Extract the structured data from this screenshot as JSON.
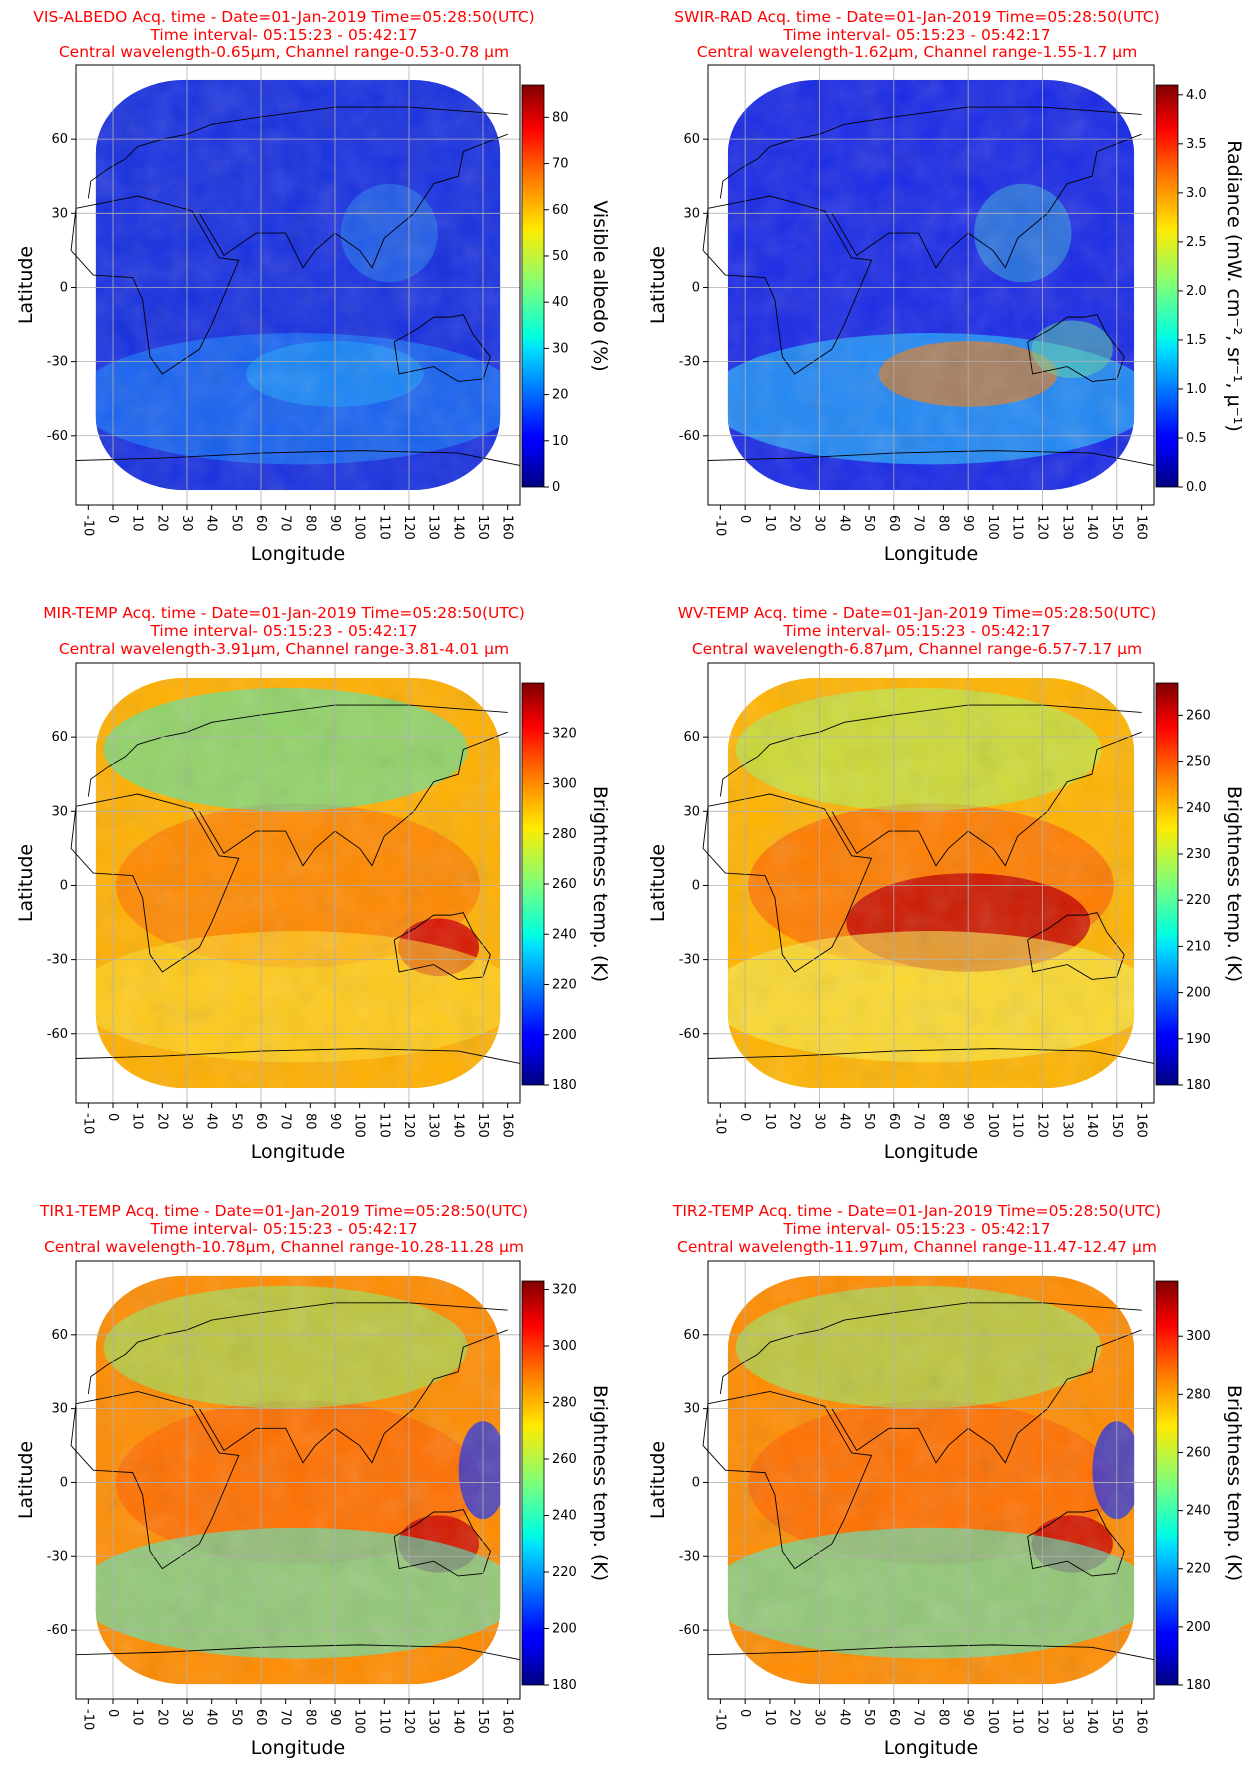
{
  "chart_data": [
    {
      "type": "heatmap",
      "title": [
        "VIS-ALBEDO Acq. time - Date=01-Jan-2019 Time=05:28:50(UTC)",
        "Time interval- 05:15:23 - 05:42:17",
        "Central wavelength-0.65µm, Channel range-0.53-0.78 µm"
      ],
      "xlabel": "Longitude",
      "ylabel": "Latitude",
      "xticks": [
        "-10",
        "0",
        "10",
        "20",
        "30",
        "40",
        "50",
        "60",
        "70",
        "80",
        "90",
        "100",
        "110",
        "120",
        "130",
        "140",
        "150",
        "160"
      ],
      "yticks": [
        "60",
        "30",
        "0",
        "-30",
        "-60"
      ],
      "colorbar": {
        "label": "Visible albedo (%)",
        "min": 0,
        "max": 87,
        "ticks": [
          "0",
          "10",
          "20",
          "30",
          "40",
          "50",
          "60",
          "70",
          "80"
        ],
        "tickvals": [
          0,
          10,
          20,
          30,
          40,
          50,
          60,
          70,
          80
        ]
      },
      "style": "vis"
    },
    {
      "type": "heatmap",
      "title": [
        "SWIR-RAD Acq. time - Date=01-Jan-2019 Time=05:28:50(UTC)",
        "Time interval- 05:15:23 - 05:42:17",
        "Central wavelength-1.62µm, Channel range-1.55-1.7 µm"
      ],
      "xlabel": "Longitude",
      "ylabel": "Latitude",
      "xticks": [
        "-10",
        "0",
        "10",
        "20",
        "30",
        "40",
        "50",
        "60",
        "70",
        "80",
        "90",
        "100",
        "110",
        "120",
        "130",
        "140",
        "150",
        "160"
      ],
      "yticks": [
        "60",
        "30",
        "0",
        "-30",
        "-60"
      ],
      "colorbar": {
        "label": "Radiance (mW. cm⁻², sr⁻¹, µ⁻¹)",
        "min": 0,
        "max": 4.1,
        "ticks": [
          "0.0",
          "0.5",
          "1.0",
          "1.5",
          "2.0",
          "2.5",
          "3.0",
          "3.5",
          "4.0"
        ],
        "tickvals": [
          0,
          0.5,
          1,
          1.5,
          2,
          2.5,
          3,
          3.5,
          4
        ]
      },
      "style": "swir"
    },
    {
      "type": "heatmap",
      "title": [
        "MIR-TEMP Acq. time - Date=01-Jan-2019 Time=05:28:50(UTC)",
        "Time interval- 05:15:23 - 05:42:17",
        "Central wavelength-3.91µm, Channel range-3.81-4.01 µm"
      ],
      "xlabel": "Longitude",
      "ylabel": "Latitude",
      "xticks": [
        "-10",
        "0",
        "10",
        "20",
        "30",
        "40",
        "50",
        "60",
        "70",
        "80",
        "90",
        "100",
        "110",
        "120",
        "130",
        "140",
        "150",
        "160"
      ],
      "yticks": [
        "60",
        "30",
        "0",
        "-30",
        "-60"
      ],
      "colorbar": {
        "label": "Brightness temp. (K)",
        "min": 180,
        "max": 340,
        "ticks": [
          "180",
          "200",
          "220",
          "240",
          "260",
          "280",
          "300",
          "320"
        ],
        "tickvals": [
          180,
          200,
          220,
          240,
          260,
          280,
          300,
          320
        ]
      },
      "style": "mir"
    },
    {
      "type": "heatmap",
      "title": [
        "WV-TEMP Acq. time - Date=01-Jan-2019 Time=05:28:50(UTC)",
        "Time interval- 05:15:23 - 05:42:17",
        "Central wavelength-6.87µm, Channel range-6.57-7.17 µm"
      ],
      "xlabel": "Longitude",
      "ylabel": "Latitude",
      "xticks": [
        "-10",
        "0",
        "10",
        "20",
        "30",
        "40",
        "50",
        "60",
        "70",
        "80",
        "90",
        "100",
        "110",
        "120",
        "130",
        "140",
        "150",
        "160"
      ],
      "yticks": [
        "60",
        "30",
        "0",
        "-30",
        "-60"
      ],
      "colorbar": {
        "label": "Brightness temp. (K)",
        "min": 180,
        "max": 267,
        "ticks": [
          "180",
          "190",
          "200",
          "210",
          "220",
          "230",
          "240",
          "250",
          "260"
        ],
        "tickvals": [
          180,
          190,
          200,
          210,
          220,
          230,
          240,
          250,
          260
        ]
      },
      "style": "wv"
    },
    {
      "type": "heatmap",
      "title": [
        "TIR1-TEMP Acq. time - Date=01-Jan-2019 Time=05:28:50(UTC)",
        "Time interval- 05:15:23 - 05:42:17",
        "Central wavelength-10.78µm, Channel range-10.28-11.28 µm"
      ],
      "xlabel": "Longitude",
      "ylabel": "Latitude",
      "xticks": [
        "-10",
        "0",
        "10",
        "20",
        "30",
        "40",
        "50",
        "60",
        "70",
        "80",
        "90",
        "100",
        "110",
        "120",
        "130",
        "140",
        "150",
        "160"
      ],
      "yticks": [
        "60",
        "30",
        "0",
        "-30",
        "-60"
      ],
      "colorbar": {
        "label": "Brightness temp. (K)",
        "min": 180,
        "max": 323,
        "ticks": [
          "180",
          "200",
          "220",
          "240",
          "260",
          "280",
          "300",
          "320"
        ],
        "tickvals": [
          180,
          200,
          220,
          240,
          260,
          280,
          300,
          320
        ]
      },
      "style": "tir"
    },
    {
      "type": "heatmap",
      "title": [
        "TIR2-TEMP Acq. time - Date=01-Jan-2019 Time=05:28:50(UTC)",
        "Time interval- 05:15:23 - 05:42:17",
        "Central wavelength-11.97µm, Channel range-11.47-12.47 µm"
      ],
      "xlabel": "Longitude",
      "ylabel": "Latitude",
      "xticks": [
        "-10",
        "0",
        "10",
        "20",
        "30",
        "40",
        "50",
        "60",
        "70",
        "80",
        "90",
        "100",
        "110",
        "120",
        "130",
        "140",
        "150",
        "160"
      ],
      "yticks": [
        "60",
        "30",
        "0",
        "-30",
        "-60"
      ],
      "colorbar": {
        "label": "Brightness temp. (K)",
        "min": 180,
        "max": 319,
        "ticks": [
          "180",
          "200",
          "220",
          "240",
          "260",
          "280",
          "300"
        ],
        "tickvals": [
          180,
          200,
          220,
          240,
          260,
          280,
          300
        ]
      },
      "style": "tir"
    }
  ],
  "colors": {
    "title": "#ff0000",
    "grid": "#b0b0b0",
    "colormap": "jet"
  }
}
